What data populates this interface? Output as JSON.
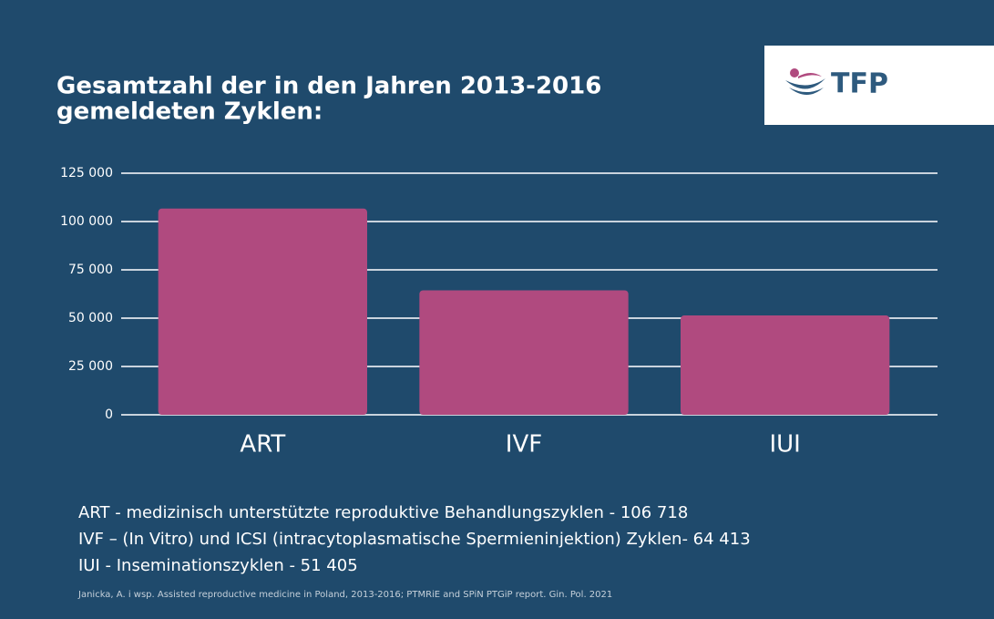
{
  "chart_data": {
    "type": "bar",
    "title": [
      "Gesamtzahl der in den Jahren 2013-2016",
      "gemeldeten Zyklen:"
    ],
    "logo": "TFP",
    "categories": [
      "ART",
      "IVF",
      "IUI"
    ],
    "values": [
      106718,
      64413,
      51405
    ],
    "color": "#b04a7f",
    "ylim": [
      0,
      125000
    ],
    "yticks": [
      0,
      {
        "value": 25000,
        "label": "25 000"
      },
      {
        "value": 50000,
        "label": "50 000"
      },
      {
        "value": 75000,
        "label": "75 000"
      },
      {
        "value": 100000,
        "label": "100 000"
      },
      {
        "value": 125000,
        "label": "125 000"
      }
    ],
    "grid": true,
    "notes": [
      "ART - medizinisch unterstützte reproduktive Behandlungszyklen - 106 718",
      "IVF – (In Vitro) und ICSI (intracytoplasmatische Spermieninjektion) Zyklen- 64 413",
      "IUI - Inseminationszyklen - 51 405"
    ],
    "source": "Janicka, A. i wsp. Assisted reproductive medicine in Poland, 2013-2016; PTMRiE and SPiN PTGiP report. Gin. Pol. 2021"
  }
}
